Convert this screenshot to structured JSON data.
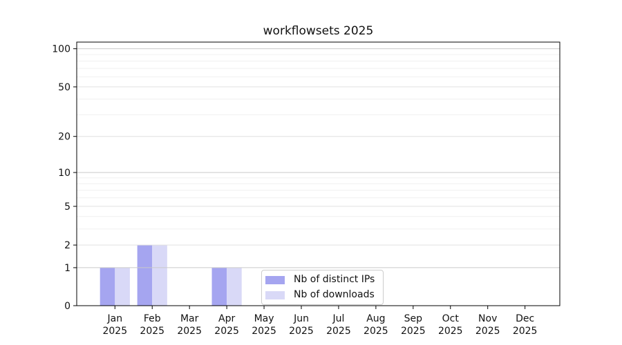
{
  "chart_data": {
    "type": "bar",
    "title": "workflowsets 2025",
    "months": [
      "Jan",
      "Feb",
      "Mar",
      "Apr",
      "May",
      "Jun",
      "Jul",
      "Aug",
      "Sep",
      "Oct",
      "Nov",
      "Dec"
    ],
    "year": "2025",
    "series": [
      {
        "name": "Nb of distinct IPs",
        "color": "#a5a5f0",
        "values": [
          1,
          2,
          0,
          1,
          0,
          0,
          0,
          0,
          0,
          0,
          0,
          0
        ]
      },
      {
        "name": "Nb of downloads",
        "color": "#d9d9f7",
        "values": [
          1,
          2,
          0,
          1,
          0,
          0,
          0,
          0,
          0,
          0,
          0,
          0
        ]
      }
    ],
    "xlabel": "",
    "ylabel": "",
    "yscale": "log1p",
    "ylim": [
      0,
      113
    ],
    "y_ticks": [
      0,
      1,
      2,
      5,
      10,
      20,
      50,
      100
    ],
    "y_decade_gridlines": [
      1,
      10,
      100
    ],
    "y_minor_gridlines": [
      3,
      4,
      6,
      7,
      8,
      9,
      30,
      40,
      60,
      70,
      80,
      90
    ],
    "grid": true,
    "legend_position": "lower center (inside plot)"
  },
  "colors": {
    "bar_distinct_ips": "#a5a5f0",
    "bar_downloads": "#d9d9f7",
    "gridline_decade": "#c9c9c9",
    "gridline_labeled": "#e0e0e0",
    "gridline_minor": "#f0f0f0",
    "axis_frame": "#000000",
    "text": "#111111",
    "legend_border": "#cccccc"
  }
}
